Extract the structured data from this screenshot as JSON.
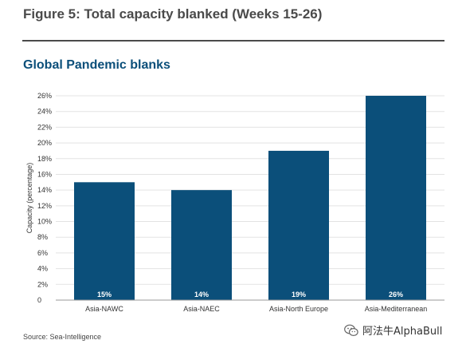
{
  "figure_title": "Figure 5: Total capacity blanked (Weeks 15-26)",
  "source": "Source: Sea-Intelligence",
  "watermark": {
    "text": "阿法牛AlphaBull",
    "icon": "wechat-icon"
  },
  "colors": {
    "bar": "#0b4f7a",
    "title": "#0b4f7a",
    "grid": "#e3e3e3"
  },
  "chart_data": {
    "type": "bar",
    "title": "Global Pandemic blanks",
    "ylabel": "Capacity (percentage)",
    "xlabel": "",
    "categories": [
      "Asia-NAWC",
      "Asia-NAEC",
      "Asia-North Europe",
      "Asia-Mediterranean"
    ],
    "values": [
      15,
      14,
      19,
      26
    ],
    "data_labels": [
      "15%",
      "14%",
      "19%",
      "26%"
    ],
    "ylim": [
      0,
      26
    ],
    "yticks": [
      0,
      2,
      4,
      6,
      8,
      10,
      12,
      14,
      16,
      18,
      20,
      22,
      24,
      26
    ],
    "ytick_labels": [
      "0",
      "2%",
      "4%",
      "6%",
      "8%",
      "10%",
      "12%",
      "14%",
      "16%",
      "18%",
      "20%",
      "22%",
      "24%",
      "26%"
    ],
    "grid": true,
    "legend": "none"
  }
}
